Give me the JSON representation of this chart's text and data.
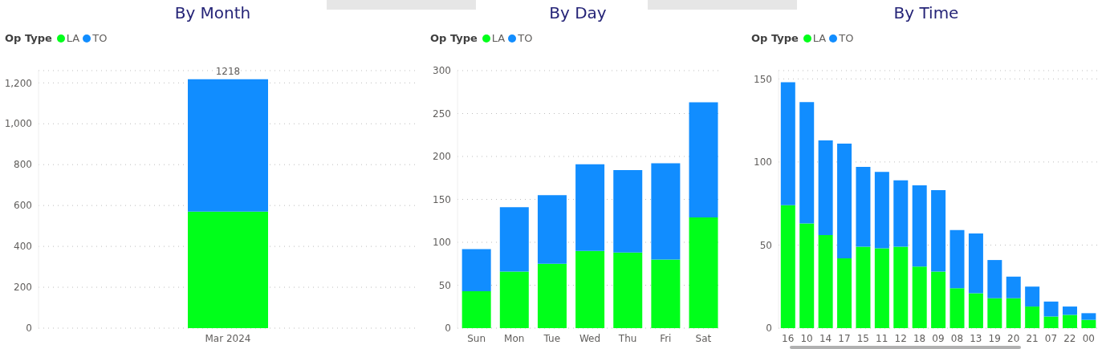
{
  "chart_data": [
    {
      "type": "bar",
      "title": "By Month",
      "legend_title": "Op Type",
      "categories": [
        "Mar 2024"
      ],
      "stacked": true,
      "series": [
        {
          "name": "LA",
          "color": "#00ff1a",
          "values": [
            570
          ]
        },
        {
          "name": "TO",
          "color": "#118dff",
          "values": [
            648
          ]
        }
      ],
      "totals": [
        "1218"
      ],
      "ylim": [
        0,
        1260
      ],
      "yticks": [
        0,
        {
          "value": 200,
          "label": "200"
        },
        {
          "value": 400,
          "label": "400"
        },
        {
          "value": 600,
          "label": "600"
        },
        {
          "value": 800,
          "label": "800"
        },
        {
          "value": 1000,
          "label": "1,000"
        },
        {
          "value": 1200,
          "label": "1,200"
        }
      ],
      "grid": "y",
      "legend": "top left"
    },
    {
      "type": "bar",
      "title": "By Day",
      "legend_title": "Op Type",
      "categories": [
        "Sun",
        "Mon",
        "Tue",
        "Wed",
        "Thu",
        "Fri",
        "Sat"
      ],
      "stacked": true,
      "series": [
        {
          "name": "LA",
          "color": "#00ff1a",
          "values": [
            43,
            66,
            75,
            90,
            88,
            80,
            129
          ]
        },
        {
          "name": "TO",
          "color": "#118dff",
          "values": [
            49,
            75,
            80,
            101,
            96,
            112,
            134
          ]
        }
      ],
      "ylim": [
        0,
        300
      ],
      "yticks": [
        0,
        50,
        100,
        150,
        200,
        250,
        300
      ],
      "grid": "y",
      "legend": "top left"
    },
    {
      "type": "bar",
      "title": "By Time",
      "legend_title": "Op Type",
      "categories": [
        "16",
        "10",
        "14",
        "17",
        "15",
        "11",
        "12",
        "18",
        "09",
        "08",
        "13",
        "19",
        "20",
        "21",
        "07",
        "22",
        "00"
      ],
      "stacked": true,
      "series": [
        {
          "name": "LA",
          "color": "#00ff1a",
          "values": [
            74,
            63,
            56,
            42,
            49,
            48,
            49,
            37,
            34,
            24,
            21,
            18,
            18,
            13,
            7,
            8,
            5
          ]
        },
        {
          "name": "TO",
          "color": "#118dff",
          "values": [
            74,
            73,
            57,
            69,
            48,
            46,
            40,
            49,
            49,
            35,
            36,
            23,
            13,
            12,
            9,
            5,
            4
          ]
        }
      ],
      "ylim": [
        0,
        155
      ],
      "yticks": [
        0,
        50,
        100,
        150
      ],
      "grid": "y",
      "legend": "top left"
    }
  ]
}
